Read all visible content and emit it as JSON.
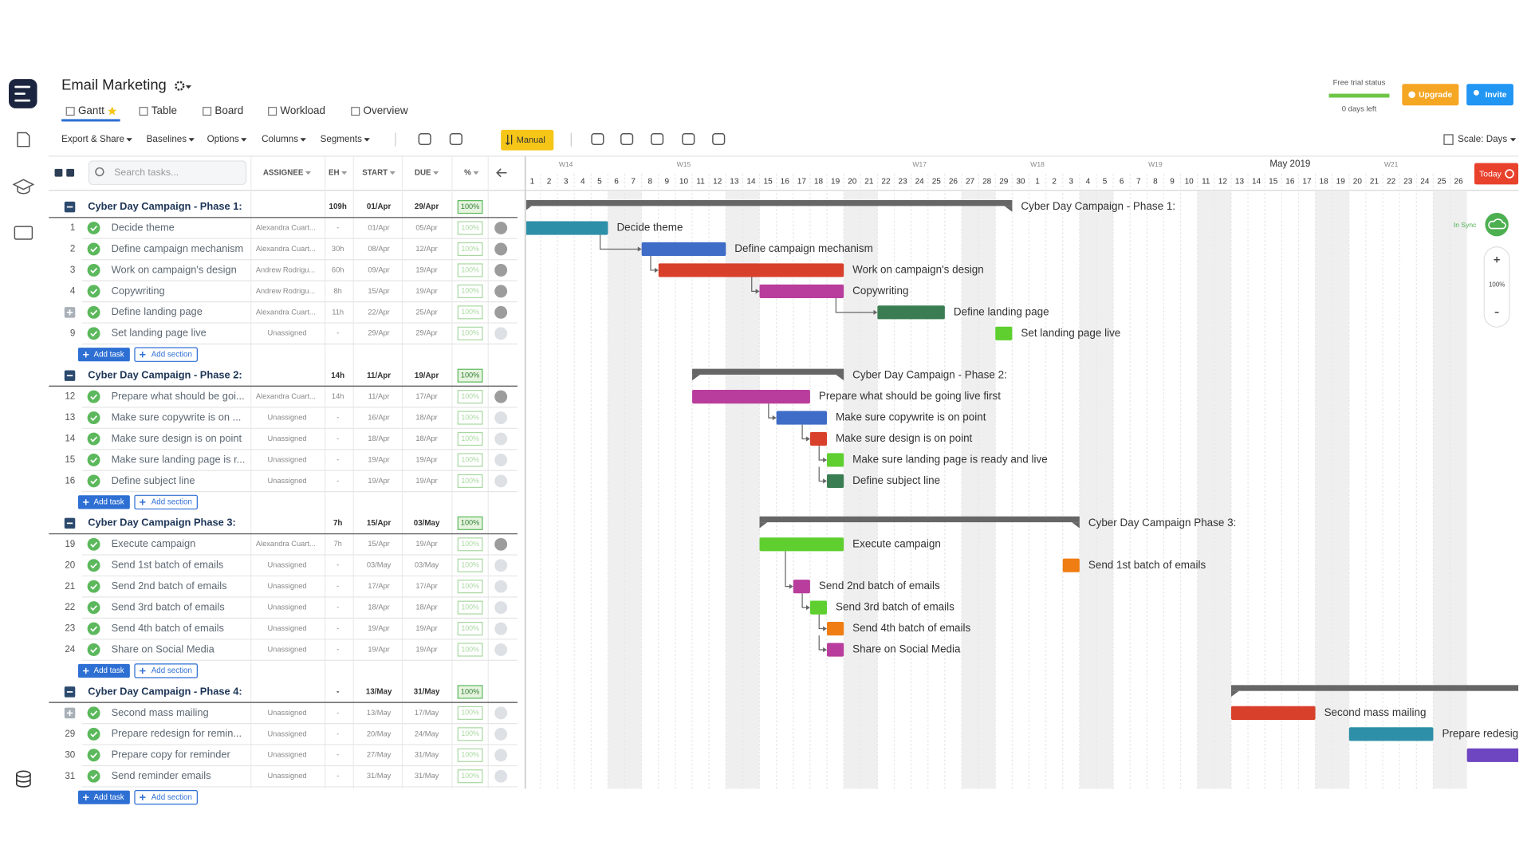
{
  "header": {
    "title": "Email Marketing",
    "tabs": [
      "Gantt",
      "Table",
      "Board",
      "Workload",
      "Overview"
    ],
    "trial_status": "Free trial status",
    "days_left": "0 days left",
    "upgrade": "Upgrade",
    "invite": "Invite"
  },
  "toolbar": {
    "menus": [
      "Export & Share",
      "Baselines",
      "Options",
      "Columns",
      "Segments"
    ],
    "manual": "Manual",
    "scale": "Scale: Days"
  },
  "table": {
    "search_placeholder": "Search tasks...",
    "columns": [
      "ASSIGNEE",
      "EH",
      "START",
      "DUE",
      "%"
    ],
    "add_task": "Add task",
    "add_section": "Add section",
    "sections": [
      {
        "name": "Cyber Day Campaign - Phase 1:",
        "eh": "109h",
        "start": "01/Apr",
        "due": "29/Apr",
        "percent": "100%",
        "tasks": [
          {
            "number": 1,
            "name": "Decide theme",
            "bar_label": "Decide theme",
            "assignee": "Alexandra Cuart...",
            "eh": "-",
            "start": "01/Apr",
            "due": "05/Apr",
            "percent": "100%",
            "color": "#2e8fa8"
          },
          {
            "number": 2,
            "name": "Define campaign mechanism",
            "bar_label": "Define campaign mechanism",
            "assignee": "Alexandra Cuart...",
            "eh": "30h",
            "start": "08/Apr",
            "due": "12/Apr",
            "percent": "100%",
            "color": "#3f6cc7"
          },
          {
            "number": 3,
            "name": "Work on campaign's design",
            "bar_label": "Work on campaign's design",
            "assignee": "Andrew Rodrigu...",
            "eh": "60h",
            "start": "09/Apr",
            "due": "19/Apr",
            "percent": "100%",
            "color": "#d9402b"
          },
          {
            "number": 4,
            "name": "Copywriting",
            "bar_label": "Copywriting",
            "assignee": "Andrew Rodrigu...",
            "eh": "8h",
            "start": "15/Apr",
            "due": "19/Apr",
            "percent": "100%",
            "color": "#b93d9c"
          },
          {
            "number": null,
            "name": "Define landing page",
            "bar_label": "Define landing page",
            "assignee": "Alexandra Cuart...",
            "eh": "11h",
            "start": "22/Apr",
            "due": "25/Apr",
            "percent": "100%",
            "color": "#3a7d52"
          },
          {
            "number": 9,
            "name": "Set landing page live",
            "bar_label": "Set landing page live",
            "assignee": "Unassigned",
            "eh": "-",
            "start": "29/Apr",
            "due": "29/Apr",
            "percent": "100%",
            "color": "#5ecf2f"
          }
        ]
      },
      {
        "name": "Cyber Day Campaign - Phase 2:",
        "eh": "14h",
        "start": "11/Apr",
        "due": "19/Apr",
        "percent": "100%",
        "tasks": [
          {
            "number": 12,
            "name": "Prepare what should be goi...",
            "bar_label": "Prepare what should be going live first",
            "assignee": "Alexandra Cuart...",
            "eh": "14h",
            "start": "11/Apr",
            "due": "17/Apr",
            "percent": "100%",
            "color": "#b93d9c"
          },
          {
            "number": 13,
            "name": "Make sure copywrite is on ...",
            "bar_label": "Make sure copywrite is on point",
            "assignee": "Unassigned",
            "eh": "-",
            "start": "16/Apr",
            "due": "18/Apr",
            "percent": "100%",
            "color": "#3f6cc7"
          },
          {
            "number": 14,
            "name": "Make sure design is on point",
            "bar_label": "Make sure design is on point",
            "assignee": "Unassigned",
            "eh": "-",
            "start": "18/Apr",
            "due": "18/Apr",
            "percent": "100%",
            "color": "#d9402b"
          },
          {
            "number": 15,
            "name": "Make sure landing page is r...",
            "bar_label": "Make sure landing page is ready and live",
            "assignee": "Unassigned",
            "eh": "-",
            "start": "19/Apr",
            "due": "19/Apr",
            "percent": "100%",
            "color": "#5ecf2f"
          },
          {
            "number": 16,
            "name": "Define subject line",
            "bar_label": "Define subject line",
            "assignee": "Unassigned",
            "eh": "-",
            "start": "19/Apr",
            "due": "19/Apr",
            "percent": "100%",
            "color": "#3a7d52"
          }
        ]
      },
      {
        "name": "Cyber Day Campaign Phase 3:",
        "eh": "7h",
        "start": "15/Apr",
        "due": "03/May",
        "percent": "100%",
        "tasks": [
          {
            "number": 19,
            "name": "Execute campaign",
            "bar_label": "Execute campaign",
            "assignee": "Alexandra Cuart...",
            "eh": "7h",
            "start": "15/Apr",
            "due": "19/Apr",
            "percent": "100%",
            "color": "#5ecf2f"
          },
          {
            "number": 20,
            "name": "Send 1st batch of emails",
            "bar_label": "Send 1st batch of emails",
            "assignee": "Unassigned",
            "eh": "-",
            "start": "03/May",
            "due": "03/May",
            "percent": "100%",
            "color": "#ef7d12"
          },
          {
            "number": 21,
            "name": "Send 2nd batch of emails",
            "bar_label": "Send 2nd batch of emails",
            "assignee": "Unassigned",
            "eh": "-",
            "start": "17/Apr",
            "due": "17/Apr",
            "percent": "100%",
            "color": "#b93d9c"
          },
          {
            "number": 22,
            "name": "Send 3rd batch of emails",
            "bar_label": "Send 3rd batch of emails",
            "assignee": "Unassigned",
            "eh": "-",
            "start": "18/Apr",
            "due": "18/Apr",
            "percent": "100%",
            "color": "#5ecf2f"
          },
          {
            "number": 23,
            "name": "Send 4th batch of emails",
            "bar_label": "Send 4th batch of emails",
            "assignee": "Unassigned",
            "eh": "-",
            "start": "19/Apr",
            "due": "19/Apr",
            "percent": "100%",
            "color": "#ef7d12"
          },
          {
            "number": 24,
            "name": "Share on Social Media",
            "bar_label": "Share on Social Media",
            "assignee": "Unassigned",
            "eh": "-",
            "start": "19/Apr",
            "due": "19/Apr",
            "percent": "100%",
            "color": "#b93d9c"
          }
        ]
      },
      {
        "name": "Cyber Day Campaign - Phase 4:",
        "eh": "-",
        "start": "13/May",
        "due": "31/May",
        "percent": "100%",
        "tasks": [
          {
            "number": null,
            "name": "Second mass mailing",
            "bar_label": "Second mass mailing",
            "assignee": "Unassigned",
            "eh": "-",
            "start": "13/May",
            "due": "17/May",
            "percent": "100%",
            "color": "#d9402b"
          },
          {
            "number": 29,
            "name": "Prepare redesign for remin...",
            "bar_label": "Prepare redesig",
            "assignee": "Unassigned",
            "eh": "-",
            "start": "20/May",
            "due": "24/May",
            "percent": "100%",
            "color": "#2e8fa8"
          },
          {
            "number": 30,
            "name": "Prepare copy for reminder",
            "assignee": "Unassigned",
            "eh": "-",
            "start": "27/May",
            "due": "31/May",
            "percent": "100%",
            "color": "#6f46c1"
          },
          {
            "number": 31,
            "name": "Send reminder emails",
            "assignee": "Unassigned",
            "eh": "-",
            "start": "31/May",
            "due": "31/May",
            "percent": "100%",
            "color": "#3f6cc7"
          }
        ]
      }
    ]
  },
  "timeline": {
    "month": "May 2019",
    "weeks": [
      "W14",
      "W15",
      "W17",
      "W18",
      "W19",
      "W21"
    ],
    "days": [
      1,
      2,
      3,
      4,
      5,
      6,
      7,
      8,
      9,
      10,
      11,
      12,
      13,
      14,
      15,
      16,
      17,
      18,
      19,
      20,
      21,
      22,
      23,
      24,
      25,
      26,
      27,
      28,
      29,
      30,
      1,
      2,
      3,
      4,
      5,
      6,
      7,
      8,
      9,
      10,
      11,
      12,
      13,
      14,
      15,
      16,
      17,
      18,
      19,
      20,
      21,
      22,
      23,
      24,
      25,
      26
    ],
    "today": "Today",
    "sync": "In Sync",
    "zoom": "100%"
  }
}
